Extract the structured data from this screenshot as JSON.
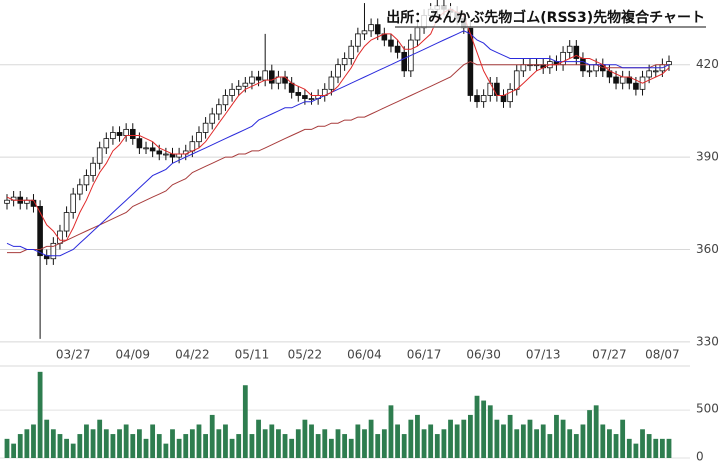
{
  "chart_data": [
    {
      "type": "candlestick",
      "title": "出所：みんかぶ先物ゴム(RSS3)先物複合チャート",
      "categories": [
        null,
        null,
        null,
        null,
        null,
        null,
        null,
        null,
        null,
        null,
        "03/27",
        null,
        null,
        null,
        null,
        null,
        null,
        null,
        null,
        "04/09",
        null,
        null,
        null,
        null,
        null,
        null,
        null,
        null,
        "04/22",
        null,
        null,
        null,
        null,
        null,
        null,
        null,
        null,
        "05/11",
        null,
        null,
        null,
        null,
        null,
        null,
        null,
        "05/22",
        null,
        null,
        null,
        null,
        null,
        null,
        null,
        null,
        "06/04",
        null,
        null,
        null,
        null,
        null,
        null,
        null,
        null,
        "06/17",
        null,
        null,
        null,
        null,
        null,
        null,
        null,
        null,
        "06/30",
        null,
        null,
        null,
        null,
        null,
        null,
        null,
        null,
        "07/13",
        null,
        null,
        null,
        null,
        null,
        null,
        null,
        null,
        null,
        "07/27",
        null,
        null,
        null,
        null,
        null,
        null,
        null,
        "08/07",
        null
      ],
      "open": [
        375,
        376,
        377,
        375,
        376,
        374,
        358,
        357,
        362,
        366,
        372,
        378,
        381,
        384,
        388,
        393,
        396,
        398,
        397,
        399,
        396,
        393,
        393,
        392,
        391,
        391,
        390,
        391,
        392,
        395,
        398,
        401,
        404,
        407,
        410,
        412,
        413,
        414,
        416,
        415,
        418,
        414,
        416,
        414,
        411,
        410,
        409,
        409,
        410,
        412,
        416,
        420,
        422,
        426,
        430,
        431,
        433,
        430,
        428,
        426,
        424,
        418,
        428,
        432,
        436,
        438,
        439,
        438,
        437,
        435,
        432,
        410,
        408,
        410,
        414,
        410,
        408,
        412,
        418,
        420,
        420,
        420,
        419,
        421,
        420,
        424,
        426,
        422,
        418,
        418,
        420,
        418,
        416,
        414,
        416,
        414,
        412,
        416,
        418,
        418,
        420
      ],
      "high": [
        378,
        379,
        379,
        377,
        378,
        376,
        360,
        364,
        368,
        374,
        380,
        383,
        386,
        390,
        395,
        398,
        400,
        400,
        401,
        401,
        398,
        395,
        395,
        394,
        393,
        393,
        393,
        394,
        397,
        400,
        403,
        406,
        409,
        412,
        414,
        415,
        416,
        418,
        418,
        430,
        420,
        418,
        418,
        416,
        413,
        412,
        411,
        412,
        414,
        418,
        422,
        424,
        428,
        432,
        440,
        435,
        435,
        432,
        430,
        428,
        426,
        430,
        434,
        438,
        440,
        441,
        441,
        440,
        439,
        437,
        434,
        412,
        412,
        416,
        416,
        412,
        414,
        420,
        422,
        422,
        422,
        422,
        423,
        423,
        426,
        428,
        428,
        424,
        420,
        422,
        422,
        420,
        418,
        418,
        418,
        416,
        418,
        420,
        420,
        422,
        423
      ],
      "low": [
        373,
        374,
        373,
        373,
        372,
        331,
        355,
        355,
        360,
        364,
        370,
        376,
        379,
        382,
        386,
        391,
        394,
        395,
        395,
        394,
        391,
        391,
        390,
        389,
        389,
        388,
        388,
        389,
        390,
        393,
        396,
        399,
        402,
        405,
        408,
        410,
        411,
        412,
        413,
        413,
        412,
        412,
        412,
        409,
        408,
        407,
        407,
        407,
        408,
        410,
        414,
        418,
        420,
        424,
        428,
        429,
        428,
        426,
        424,
        422,
        416,
        416,
        426,
        430,
        434,
        436,
        436,
        435,
        433,
        430,
        408,
        406,
        406,
        408,
        408,
        406,
        406,
        410,
        416,
        418,
        418,
        417,
        417,
        418,
        418,
        422,
        420,
        416,
        416,
        416,
        416,
        414,
        412,
        412,
        412,
        410,
        410,
        414,
        416,
        416,
        418
      ],
      "close": [
        376,
        377,
        375,
        376,
        374,
        358,
        357,
        362,
        366,
        372,
        378,
        381,
        384,
        388,
        393,
        396,
        398,
        397,
        399,
        396,
        393,
        393,
        392,
        391,
        391,
        390,
        391,
        392,
        395,
        398,
        401,
        404,
        407,
        410,
        412,
        413,
        414,
        416,
        415,
        418,
        414,
        416,
        414,
        411,
        410,
        409,
        409,
        410,
        412,
        416,
        420,
        422,
        426,
        430,
        431,
        433,
        430,
        428,
        426,
        424,
        418,
        428,
        432,
        436,
        438,
        439,
        438,
        437,
        435,
        432,
        410,
        408,
        410,
        414,
        410,
        408,
        412,
        418,
        420,
        420,
        420,
        419,
        421,
        420,
        424,
        426,
        422,
        418,
        418,
        420,
        418,
        416,
        414,
        416,
        414,
        412,
        416,
        418,
        418,
        420,
        421
      ],
      "series": [
        {
          "color": "#a83c3c",
          "values": [
            359,
            359,
            359,
            360,
            360,
            360,
            361,
            361,
            362,
            363,
            364,
            365,
            366,
            367,
            368,
            369,
            370,
            371,
            372,
            374,
            375,
            376,
            377,
            378,
            379,
            381,
            382,
            383,
            385,
            386,
            387,
            388,
            389,
            390,
            390,
            391,
            391,
            392,
            392,
            393,
            394,
            395,
            396,
            397,
            398,
            399,
            399,
            400,
            400,
            401,
            401,
            402,
            402,
            403,
            403,
            404,
            405,
            406,
            407,
            408,
            409,
            410,
            411,
            412,
            413,
            414,
            415,
            416,
            418,
            420,
            421,
            420,
            420,
            420,
            420,
            420,
            420,
            420,
            420,
            420,
            420,
            420,
            420,
            420,
            420,
            420,
            420,
            420,
            420,
            420,
            419,
            419,
            419,
            419,
            419,
            419,
            419,
            419,
            420,
            420,
            420
          ]
        },
        {
          "color": "#2b2bdc",
          "values": [
            362,
            361,
            361,
            360,
            360,
            359,
            358,
            358,
            358,
            359,
            360,
            362,
            364,
            366,
            368,
            370,
            372,
            374,
            376,
            378,
            380,
            382,
            384,
            385,
            386,
            388,
            389,
            390,
            391,
            392,
            393,
            394,
            395,
            396,
            397,
            398,
            399,
            400,
            402,
            403,
            404,
            405,
            406,
            406,
            407,
            408,
            408,
            409,
            410,
            411,
            412,
            413,
            414,
            415,
            416,
            417,
            418,
            419,
            420,
            421,
            422,
            423,
            424,
            425,
            426,
            427,
            428,
            429,
            430,
            431,
            430,
            428,
            427,
            425,
            424,
            423,
            422,
            422,
            422,
            422,
            422,
            422,
            422,
            421,
            421,
            421,
            421,
            421,
            420,
            420,
            420,
            420,
            420,
            419,
            419,
            419,
            419,
            419,
            419,
            419,
            420
          ]
        },
        {
          "color": "#e02a2a",
          "values": [
            377,
            376,
            376,
            376,
            376,
            372,
            368,
            366,
            363,
            363,
            367,
            372,
            376,
            381,
            385,
            388,
            392,
            394,
            397,
            397,
            397,
            396,
            395,
            393,
            392,
            391,
            391,
            391,
            392,
            393,
            395,
            398,
            401,
            404,
            407,
            410,
            412,
            413,
            414,
            415,
            415,
            416,
            416,
            414,
            413,
            412,
            410,
            410,
            410,
            411,
            413,
            416,
            419,
            423,
            426,
            428,
            429,
            430,
            430,
            428,
            425,
            425,
            426,
            428,
            430,
            435,
            437,
            438,
            437,
            436,
            430,
            424,
            418,
            414,
            410,
            410,
            411,
            412,
            414,
            416,
            418,
            419,
            420,
            420,
            421,
            422,
            423,
            422,
            422,
            421,
            420,
            418,
            417,
            416,
            416,
            415,
            414,
            415,
            416,
            417,
            419
          ]
        }
      ],
      "ylim": [
        329,
        441
      ],
      "yticks": [
        330,
        360,
        390,
        420
      ],
      "grid": true
    },
    {
      "type": "bar",
      "color": "#2e7d4f",
      "values": [
        200,
        150,
        250,
        300,
        350,
        900,
        400,
        300,
        250,
        200,
        150,
        250,
        350,
        300,
        400,
        300,
        250,
        300,
        350,
        250,
        300,
        200,
        350,
        250,
        150,
        300,
        200,
        250,
        300,
        350,
        250,
        450,
        300,
        350,
        200,
        250,
        760,
        250,
        400,
        300,
        350,
        300,
        250,
        200,
        300,
        400,
        350,
        250,
        300,
        200,
        300,
        250,
        200,
        350,
        300,
        400,
        250,
        300,
        550,
        350,
        250,
        400,
        450,
        300,
        350,
        250,
        300,
        400,
        350,
        400,
        450,
        650,
        600,
        550,
        400,
        350,
        450,
        300,
        350,
        400,
        300,
        350,
        250,
        450,
        400,
        300,
        250,
        350,
        500,
        550,
        350,
        300,
        250,
        400,
        200,
        150,
        300,
        250,
        200,
        200,
        200
      ],
      "ylim": [
        0,
        940
      ],
      "yticks": [
        0,
        500
      ]
    }
  ]
}
